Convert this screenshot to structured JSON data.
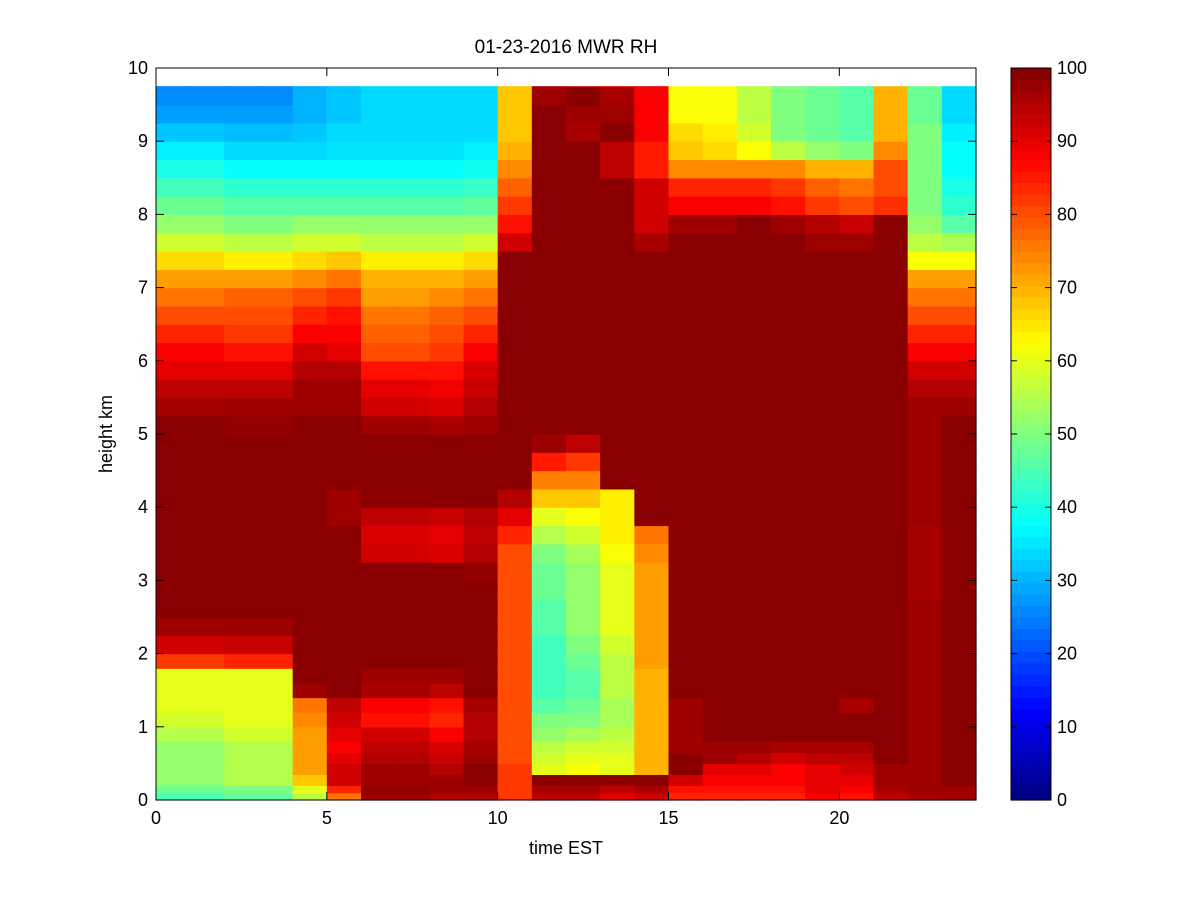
{
  "chart_data": {
    "type": "heatmap",
    "title": "01-23-2016 MWR RH",
    "xlabel": "time EST",
    "ylabel": "height km",
    "xlim": [
      0,
      24
    ],
    "ylim": [
      0,
      10
    ],
    "x_ticks": [
      0,
      5,
      10,
      15,
      20
    ],
    "y_ticks": [
      0,
      1,
      2,
      3,
      4,
      5,
      6,
      7,
      8,
      9,
      10
    ],
    "colorbar": {
      "range": [
        0,
        100
      ],
      "ticks": [
        0,
        10,
        20,
        30,
        40,
        50,
        60,
        70,
        80,
        90,
        100
      ],
      "colormap": "jet"
    },
    "time_bins": [
      0.5,
      1.5,
      2.5,
      3.5,
      4.5,
      5.5,
      6.5,
      7.5,
      8.5,
      9.5,
      10.5,
      11.5,
      12.5,
      13.5,
      14.5,
      15.5,
      16.5,
      17.5,
      18.5,
      19.5,
      20.5,
      21.5,
      22.5,
      23.5
    ],
    "height_bins": [
      0,
      0.1,
      0.2,
      0.35,
      0.5,
      0.65,
      0.8,
      1.0,
      1.2,
      1.4,
      1.6,
      1.8,
      2.0,
      2.25,
      2.5,
      2.75,
      3.0,
      3.25,
      3.5,
      3.75,
      4.0,
      4.25,
      4.5,
      4.75,
      5.0,
      5.25,
      5.5,
      5.75,
      6.0,
      6.25,
      6.5,
      6.75,
      7.0,
      7.25,
      7.5,
      7.75,
      8.0,
      8.25,
      8.5,
      8.75,
      9.0,
      9.25,
      9.5,
      9.75
    ],
    "rh_profiles": [
      [
        45,
        48,
        52,
        52,
        52,
        52,
        55,
        58,
        60,
        60,
        60,
        82,
        92,
        97,
        99,
        99,
        99,
        99,
        99,
        99,
        99,
        99,
        99,
        99,
        99,
        96,
        94,
        90,
        88,
        84,
        80,
        76,
        72,
        66,
        58,
        52,
        48,
        44,
        40,
        36,
        32,
        28,
        26,
        24
      ],
      [
        45,
        48,
        52,
        52,
        52,
        52,
        55,
        58,
        60,
        60,
        60,
        82,
        92,
        97,
        99,
        99,
        99,
        99,
        99,
        99,
        99,
        99,
        99,
        99,
        99,
        96,
        94,
        90,
        88,
        84,
        80,
        76,
        72,
        66,
        58,
        52,
        48,
        44,
        40,
        36,
        32,
        28,
        26,
        24
      ],
      [
        47,
        50,
        55,
        55,
        55,
        55,
        58,
        60,
        60,
        60,
        60,
        84,
        93,
        97,
        99,
        99,
        99,
        99,
        99,
        99,
        99,
        99,
        99,
        99,
        98,
        97,
        94,
        90,
        86,
        82,
        80,
        78,
        72,
        64,
        56,
        50,
        46,
        42,
        38,
        34,
        31,
        28,
        26,
        24
      ],
      [
        47,
        50,
        55,
        55,
        55,
        55,
        58,
        60,
        60,
        60,
        60,
        84,
        93,
        97,
        99,
        99,
        99,
        99,
        99,
        99,
        99,
        99,
        99,
        99,
        98,
        97,
        94,
        90,
        86,
        82,
        80,
        78,
        72,
        64,
        56,
        50,
        46,
        42,
        38,
        34,
        31,
        28,
        26,
        24
      ],
      [
        56,
        60,
        68,
        72,
        72,
        72,
        72,
        74,
        76,
        97,
        99,
        99,
        99,
        99,
        99,
        99,
        99,
        99,
        99,
        99,
        99,
        99,
        99,
        99,
        99,
        97,
        97,
        95,
        92,
        88,
        84,
        80,
        74,
        66,
        58,
        52,
        46,
        42,
        38,
        34,
        32,
        30,
        30,
        28
      ],
      [
        76,
        84,
        92,
        92,
        90,
        88,
        90,
        92,
        94,
        99,
        99,
        99,
        99,
        99,
        99,
        99,
        99,
        99,
        99,
        97,
        97,
        99,
        99,
        99,
        99,
        97,
        97,
        95,
        90,
        88,
        86,
        82,
        76,
        68,
        58,
        52,
        46,
        42,
        38,
        35,
        34,
        32,
        32,
        32
      ],
      [
        97,
        98,
        97,
        97,
        95,
        94,
        92,
        86,
        88,
        96,
        97,
        99,
        99,
        99,
        99,
        99,
        99,
        92,
        91,
        94,
        99,
        99,
        99,
        99,
        97,
        92,
        90,
        86,
        80,
        78,
        76,
        72,
        70,
        64,
        56,
        52,
        46,
        42,
        38,
        35,
        34,
        34,
        34,
        34
      ],
      [
        97,
        98,
        97,
        97,
        95,
        94,
        92,
        86,
        88,
        96,
        97,
        99,
        99,
        99,
        99,
        99,
        99,
        92,
        91,
        94,
        99,
        99,
        99,
        99,
        97,
        92,
        90,
        86,
        80,
        78,
        76,
        72,
        70,
        64,
        56,
        52,
        46,
        42,
        38,
        35,
        34,
        34,
        34,
        34
      ],
      [
        95,
        97,
        97,
        95,
        93,
        91,
        88,
        84,
        86,
        94,
        97,
        99,
        99,
        99,
        99,
        99,
        99,
        91,
        90,
        93,
        99,
        99,
        99,
        99,
        96,
        91,
        89,
        86,
        82,
        80,
        78,
        74,
        70,
        64,
        56,
        52,
        46,
        42,
        38,
        35,
        34,
        34,
        34,
        34
      ],
      [
        95,
        97,
        99,
        99,
        97,
        96,
        95,
        95,
        96,
        99,
        99,
        99,
        99,
        99,
        99,
        99,
        98,
        95,
        94,
        95,
        99,
        99,
        99,
        99,
        97,
        95,
        93,
        91,
        88,
        84,
        80,
        76,
        72,
        66,
        58,
        52,
        47,
        43,
        39,
        36,
        34,
        34,
        34,
        34
      ],
      [
        82,
        82,
        82,
        82,
        80,
        80,
        80,
        80,
        80,
        80,
        80,
        80,
        80,
        80,
        80,
        80,
        80,
        80,
        84,
        90,
        95,
        99,
        99,
        99,
        99,
        99,
        99,
        99,
        99,
        99,
        99,
        99,
        99,
        99,
        92,
        86,
        82,
        78,
        74,
        70,
        68,
        68,
        68,
        68
      ],
      [
        94,
        96,
        99,
        60,
        58,
        56,
        52,
        50,
        46,
        44,
        44,
        44,
        44,
        46,
        46,
        48,
        48,
        50,
        55,
        60,
        68,
        75,
        85,
        97,
        99,
        99,
        99,
        99,
        99,
        99,
        99,
        99,
        99,
        99,
        99,
        99,
        99,
        99,
        99,
        99,
        99,
        99,
        97,
        94
      ],
      [
        94,
        96,
        99,
        62,
        60,
        58,
        54,
        50,
        48,
        46,
        46,
        48,
        50,
        52,
        52,
        52,
        52,
        54,
        58,
        62,
        68,
        75,
        82,
        94,
        99,
        99,
        99,
        99,
        99,
        99,
        99,
        99,
        99,
        99,
        99,
        99,
        99,
        99,
        99,
        99,
        96,
        97,
        99,
        90
      ],
      [
        90,
        94,
        99,
        60,
        60,
        58,
        56,
        54,
        54,
        56,
        56,
        56,
        58,
        60,
        60,
        60,
        60,
        62,
        64,
        64,
        64,
        99,
        99,
        99,
        99,
        99,
        99,
        99,
        99,
        99,
        99,
        99,
        99,
        99,
        99,
        99,
        99,
        99,
        94,
        94,
        99,
        97,
        96,
        88
      ],
      [
        92,
        96,
        99,
        70,
        70,
        70,
        70,
        70,
        70,
        70,
        70,
        72,
        72,
        72,
        72,
        72,
        72,
        74,
        76,
        99,
        99,
        99,
        99,
        99,
        99,
        99,
        99,
        99,
        99,
        99,
        99,
        99,
        99,
        99,
        96,
        92,
        92,
        92,
        85,
        85,
        88,
        88,
        88,
        88
      ],
      [
        84,
        86,
        92,
        99,
        99,
        97,
        97,
        97,
        97,
        99,
        99,
        99,
        99,
        99,
        99,
        99,
        99,
        99,
        99,
        99,
        99,
        99,
        99,
        99,
        99,
        99,
        99,
        99,
        99,
        99,
        99,
        99,
        99,
        99,
        99,
        97,
        88,
        84,
        74,
        68,
        66,
        62,
        62,
        62
      ],
      [
        84,
        86,
        88,
        90,
        97,
        97,
        99,
        99,
        99,
        99,
        99,
        99,
        99,
        99,
        99,
        99,
        99,
        99,
        99,
        99,
        99,
        99,
        99,
        99,
        99,
        99,
        99,
        99,
        99,
        99,
        99,
        99,
        99,
        99,
        99,
        97,
        88,
        84,
        74,
        66,
        64,
        62,
        62,
        62
      ],
      [
        84,
        86,
        88,
        90,
        95,
        97,
        99,
        99,
        99,
        99,
        99,
        99,
        99,
        99,
        99,
        99,
        99,
        99,
        99,
        99,
        99,
        99,
        99,
        99,
        99,
        99,
        99,
        99,
        99,
        99,
        99,
        99,
        99,
        99,
        99,
        99,
        88,
        84,
        74,
        62,
        58,
        56,
        56,
        56
      ],
      [
        84,
        86,
        88,
        88,
        92,
        96,
        99,
        99,
        99,
        99,
        99,
        99,
        99,
        99,
        99,
        99,
        99,
        99,
        99,
        99,
        99,
        99,
        99,
        99,
        99,
        99,
        99,
        99,
        99,
        99,
        99,
        99,
        99,
        99,
        99,
        97,
        86,
        82,
        74,
        56,
        50,
        50,
        50,
        50
      ],
      [
        88,
        90,
        90,
        90,
        94,
        96,
        99,
        99,
        99,
        99,
        99,
        99,
        99,
        99,
        99,
        99,
        99,
        99,
        99,
        99,
        99,
        99,
        99,
        99,
        99,
        99,
        99,
        99,
        99,
        99,
        99,
        99,
        99,
        99,
        97,
        95,
        82,
        78,
        70,
        52,
        48,
        48,
        48,
        48
      ],
      [
        86,
        88,
        90,
        92,
        94,
        96,
        99,
        99,
        96,
        99,
        99,
        99,
        99,
        99,
        99,
        99,
        99,
        99,
        99,
        99,
        99,
        99,
        99,
        99,
        99,
        99,
        99,
        99,
        99,
        99,
        99,
        99,
        99,
        99,
        97,
        93,
        80,
        76,
        70,
        50,
        46,
        46,
        46,
        46
      ],
      [
        94,
        96,
        97,
        97,
        99,
        99,
        99,
        99,
        99,
        99,
        99,
        99,
        99,
        99,
        99,
        99,
        99,
        99,
        99,
        99,
        99,
        99,
        99,
        99,
        99,
        99,
        99,
        99,
        99,
        99,
        99,
        99,
        99,
        99,
        99,
        99,
        83,
        80,
        80,
        74,
        70,
        70,
        70,
        70
      ],
      [
        96,
        97,
        97,
        97,
        97,
        97,
        97,
        97,
        97,
        97,
        97,
        97,
        97,
        97,
        97,
        96,
        96,
        96,
        96,
        97,
        97,
        97,
        97,
        97,
        97,
        97,
        95,
        92,
        88,
        84,
        80,
        76,
        72,
        62,
        56,
        52,
        50,
        50,
        50,
        50,
        50,
        48,
        48,
        48
      ],
      [
        97,
        97,
        99,
        99,
        99,
        99,
        99,
        99,
        99,
        99,
        99,
        99,
        99,
        99,
        99,
        99,
        99,
        99,
        99,
        99,
        99,
        99,
        99,
        99,
        99,
        97,
        95,
        92,
        88,
        84,
        80,
        76,
        72,
        62,
        54,
        46,
        42,
        40,
        38,
        38,
        36,
        34,
        34,
        34
      ]
    ]
  }
}
